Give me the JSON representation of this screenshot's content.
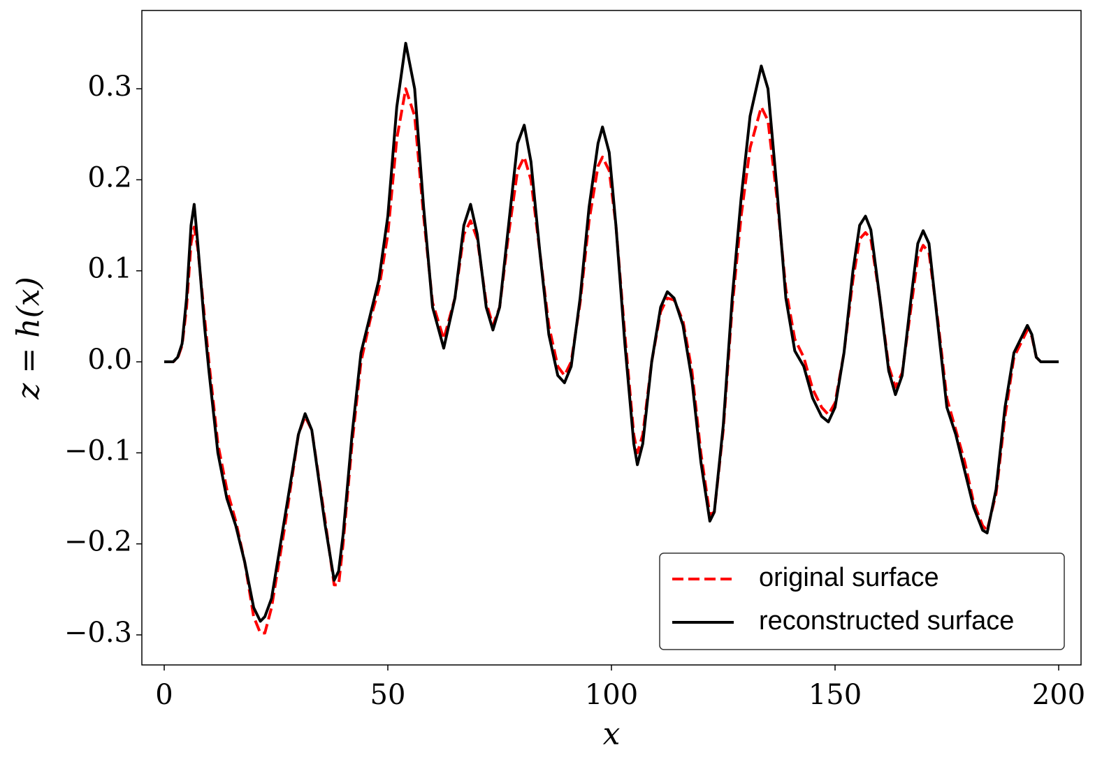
{
  "chart_data": {
    "type": "line",
    "x_label": "x",
    "y_label": "z = h(x)",
    "x": [
      0,
      2,
      3,
      4,
      5,
      6,
      6.7,
      7.5,
      9,
      10,
      12,
      14,
      16,
      18,
      20,
      21.5,
      22.5,
      24,
      27,
      30,
      31.5,
      33,
      36,
      38,
      39,
      40,
      42,
      44,
      46,
      48,
      50,
      52,
      54,
      56,
      58,
      60,
      62.5,
      65,
      67,
      68.5,
      70,
      72,
      73.5,
      75,
      77,
      79,
      80.5,
      82,
      84,
      86,
      88,
      89.5,
      91,
      93,
      95,
      97,
      98,
      99.5,
      101,
      103,
      105,
      105.8,
      107,
      109,
      111,
      112.5,
      114,
      116,
      118,
      120,
      122,
      123,
      125,
      127,
      129,
      131,
      133.5,
      135,
      137,
      139,
      141,
      143,
      145,
      147,
      148.5,
      150,
      152,
      154,
      155.5,
      156.8,
      158,
      160,
      162,
      163.5,
      165,
      167,
      168.5,
      169.7,
      171,
      173,
      175,
      177,
      179,
      181,
      183,
      184,
      186,
      188,
      190,
      192,
      193,
      194,
      195,
      196,
      198,
      200
    ],
    "series": [
      {
        "name": "original surface",
        "color": "#ff0000",
        "dash": true,
        "values": [
          0,
          0,
          0.004,
          0.018,
          0.06,
          0.13,
          0.148,
          0.125,
          0.05,
          0.0,
          -0.09,
          -0.14,
          -0.175,
          -0.22,
          -0.28,
          -0.298,
          -0.298,
          -0.27,
          -0.18,
          -0.08,
          -0.06,
          -0.075,
          -0.175,
          -0.245,
          -0.245,
          -0.2,
          -0.09,
          0.0,
          0.045,
          0.08,
          0.14,
          0.245,
          0.3,
          0.27,
          0.16,
          0.065,
          0.025,
          0.07,
          0.14,
          0.155,
          0.135,
          0.065,
          0.04,
          0.06,
          0.14,
          0.21,
          0.225,
          0.2,
          0.12,
          0.04,
          -0.005,
          -0.015,
          0.0,
          0.065,
          0.155,
          0.215,
          0.225,
          0.21,
          0.15,
          0.03,
          -0.08,
          -0.1,
          -0.08,
          0.0,
          0.055,
          0.07,
          0.068,
          0.045,
          -0.01,
          -0.1,
          -0.168,
          -0.165,
          -0.075,
          0.06,
          0.16,
          0.235,
          0.28,
          0.265,
          0.18,
          0.08,
          0.025,
          0.005,
          -0.03,
          -0.05,
          -0.058,
          -0.045,
          0.01,
          0.09,
          0.135,
          0.142,
          0.135,
          0.07,
          -0.005,
          -0.028,
          -0.012,
          0.06,
          0.115,
          0.128,
          0.12,
          0.045,
          -0.04,
          -0.075,
          -0.11,
          -0.155,
          -0.18,
          -0.185,
          -0.145,
          -0.06,
          0.005,
          0.025,
          0.035,
          0.028,
          0.005,
          0,
          0,
          0
        ]
      },
      {
        "name": "reconstructed surface",
        "color": "#000000",
        "dash": false,
        "values": [
          0,
          0,
          0.005,
          0.02,
          0.07,
          0.15,
          0.173,
          0.13,
          0.04,
          -0.01,
          -0.1,
          -0.15,
          -0.18,
          -0.22,
          -0.27,
          -0.285,
          -0.28,
          -0.26,
          -0.17,
          -0.08,
          -0.057,
          -0.075,
          -0.18,
          -0.24,
          -0.23,
          -0.19,
          -0.08,
          0.01,
          0.05,
          0.09,
          0.16,
          0.28,
          0.35,
          0.3,
          0.17,
          0.06,
          0.015,
          0.07,
          0.15,
          0.173,
          0.14,
          0.06,
          0.035,
          0.06,
          0.15,
          0.24,
          0.26,
          0.22,
          0.12,
          0.03,
          -0.015,
          -0.023,
          -0.005,
          0.07,
          0.17,
          0.24,
          0.258,
          0.23,
          0.15,
          0.02,
          -0.09,
          -0.113,
          -0.09,
          0.0,
          0.06,
          0.077,
          0.07,
          0.04,
          -0.02,
          -0.11,
          -0.175,
          -0.165,
          -0.07,
          0.07,
          0.18,
          0.27,
          0.325,
          0.3,
          0.19,
          0.07,
          0.012,
          -0.005,
          -0.04,
          -0.06,
          -0.066,
          -0.05,
          0.01,
          0.1,
          0.15,
          0.16,
          0.145,
          0.07,
          -0.01,
          -0.036,
          -0.015,
          0.07,
          0.13,
          0.144,
          0.13,
          0.04,
          -0.05,
          -0.08,
          -0.12,
          -0.16,
          -0.185,
          -0.188,
          -0.14,
          -0.05,
          0.01,
          0.03,
          0.04,
          0.03,
          0.005,
          0,
          0,
          0
        ]
      }
    ],
    "xlim": [
      -5,
      205
    ],
    "ylim": [
      -0.333,
      0.386
    ],
    "xticks": [
      0,
      50,
      100,
      150,
      200
    ],
    "yticks": [
      {
        "value": -0.3,
        "label": "−0.3"
      },
      {
        "value": -0.2,
        "label": "−0.2"
      },
      {
        "value": -0.1,
        "label": "−0.1"
      },
      {
        "value": 0,
        "label": "0.0"
      },
      {
        "value": 0.1,
        "label": "0.1"
      },
      {
        "value": 0.2,
        "label": "0.2"
      },
      {
        "value": 0.3,
        "label": "0.3"
      }
    ],
    "grid": false,
    "legend": "lower right"
  }
}
